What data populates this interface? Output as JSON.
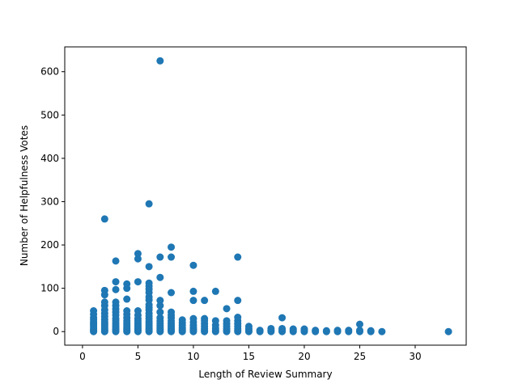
{
  "chart_data": {
    "type": "scatter",
    "title": "",
    "xlabel": "Length of Review Summary",
    "ylabel": "Number of Helpfulness Votes",
    "xlim": [
      -1.6,
      34.6
    ],
    "ylim": [
      -31.3,
      657.3
    ],
    "xticks": [
      0,
      5,
      10,
      15,
      20,
      25,
      30
    ],
    "yticks": [
      0,
      100,
      200,
      300,
      400,
      500,
      600
    ],
    "grid": false,
    "marker_color": "#1f77b4",
    "series": [
      {
        "points": [
          [
            1,
            0
          ],
          [
            1,
            3
          ],
          [
            1,
            6
          ],
          [
            1,
            10
          ],
          [
            1,
            14
          ],
          [
            1,
            18
          ],
          [
            1,
            22
          ],
          [
            1,
            27
          ],
          [
            1,
            32
          ],
          [
            1,
            40
          ],
          [
            1,
            48
          ],
          [
            2,
            0
          ],
          [
            2,
            3
          ],
          [
            2,
            6
          ],
          [
            2,
            10
          ],
          [
            2,
            14
          ],
          [
            2,
            18
          ],
          [
            2,
            23
          ],
          [
            2,
            28
          ],
          [
            2,
            35
          ],
          [
            2,
            42
          ],
          [
            2,
            50
          ],
          [
            2,
            60
          ],
          [
            2,
            68
          ],
          [
            2,
            85
          ],
          [
            2,
            95
          ],
          [
            2,
            260
          ],
          [
            3,
            0
          ],
          [
            3,
            3
          ],
          [
            3,
            6
          ],
          [
            3,
            10
          ],
          [
            3,
            14
          ],
          [
            3,
            19
          ],
          [
            3,
            25
          ],
          [
            3,
            30
          ],
          [
            3,
            38
          ],
          [
            3,
            45
          ],
          [
            3,
            52
          ],
          [
            3,
            60
          ],
          [
            3,
            68
          ],
          [
            3,
            97
          ],
          [
            3,
            115
          ],
          [
            3,
            163
          ],
          [
            4,
            0
          ],
          [
            4,
            3
          ],
          [
            4,
            6
          ],
          [
            4,
            10
          ],
          [
            4,
            14
          ],
          [
            4,
            19
          ],
          [
            4,
            25
          ],
          [
            4,
            32
          ],
          [
            4,
            40
          ],
          [
            4,
            48
          ],
          [
            4,
            75
          ],
          [
            4,
            100
          ],
          [
            4,
            110
          ],
          [
            5,
            0
          ],
          [
            5,
            3
          ],
          [
            5,
            6
          ],
          [
            5,
            10
          ],
          [
            5,
            14
          ],
          [
            5,
            19
          ],
          [
            5,
            25
          ],
          [
            5,
            30
          ],
          [
            5,
            38
          ],
          [
            5,
            48
          ],
          [
            5,
            115
          ],
          [
            5,
            168
          ],
          [
            5,
            180
          ],
          [
            6,
            0
          ],
          [
            6,
            3
          ],
          [
            6,
            6
          ],
          [
            6,
            10
          ],
          [
            6,
            14
          ],
          [
            6,
            19
          ],
          [
            6,
            24
          ],
          [
            6,
            30
          ],
          [
            6,
            36
          ],
          [
            6,
            42
          ],
          [
            6,
            50
          ],
          [
            6,
            56
          ],
          [
            6,
            62
          ],
          [
            6,
            73
          ],
          [
            6,
            80
          ],
          [
            6,
            90
          ],
          [
            6,
            98
          ],
          [
            6,
            105
          ],
          [
            6,
            112
          ],
          [
            6,
            150
          ],
          [
            6,
            295
          ],
          [
            7,
            0
          ],
          [
            7,
            3
          ],
          [
            7,
            6
          ],
          [
            7,
            10
          ],
          [
            7,
            14
          ],
          [
            7,
            19
          ],
          [
            7,
            25
          ],
          [
            7,
            32
          ],
          [
            7,
            45
          ],
          [
            7,
            60
          ],
          [
            7,
            72
          ],
          [
            7,
            125
          ],
          [
            7,
            172
          ],
          [
            7,
            625
          ],
          [
            8,
            0
          ],
          [
            8,
            3
          ],
          [
            8,
            6
          ],
          [
            8,
            10
          ],
          [
            8,
            14
          ],
          [
            8,
            19
          ],
          [
            8,
            25
          ],
          [
            8,
            32
          ],
          [
            8,
            38
          ],
          [
            8,
            45
          ],
          [
            8,
            90
          ],
          [
            8,
            172
          ],
          [
            8,
            195
          ],
          [
            9,
            0
          ],
          [
            9,
            3
          ],
          [
            9,
            6
          ],
          [
            9,
            10
          ],
          [
            9,
            15
          ],
          [
            9,
            20
          ],
          [
            9,
            27
          ],
          [
            10,
            0
          ],
          [
            10,
            3
          ],
          [
            10,
            6
          ],
          [
            10,
            10
          ],
          [
            10,
            15
          ],
          [
            10,
            22
          ],
          [
            10,
            30
          ],
          [
            10,
            72
          ],
          [
            10,
            93
          ],
          [
            10,
            153
          ],
          [
            11,
            0
          ],
          [
            11,
            3
          ],
          [
            11,
            7
          ],
          [
            11,
            12
          ],
          [
            11,
            18
          ],
          [
            11,
            25
          ],
          [
            11,
            30
          ],
          [
            11,
            72
          ],
          [
            12,
            0
          ],
          [
            12,
            3
          ],
          [
            12,
            8
          ],
          [
            12,
            15
          ],
          [
            12,
            25
          ],
          [
            12,
            93
          ],
          [
            13,
            0
          ],
          [
            13,
            3
          ],
          [
            13,
            7
          ],
          [
            13,
            12
          ],
          [
            13,
            18
          ],
          [
            13,
            25
          ],
          [
            13,
            53
          ],
          [
            14,
            0
          ],
          [
            14,
            3
          ],
          [
            14,
            7
          ],
          [
            14,
            12
          ],
          [
            14,
            18
          ],
          [
            14,
            25
          ],
          [
            14,
            33
          ],
          [
            14,
            72
          ],
          [
            14,
            172
          ],
          [
            15,
            0
          ],
          [
            15,
            3
          ],
          [
            15,
            7
          ],
          [
            15,
            12
          ],
          [
            16,
            0
          ],
          [
            16,
            3
          ],
          [
            17,
            0
          ],
          [
            17,
            3
          ],
          [
            17,
            7
          ],
          [
            18,
            0
          ],
          [
            18,
            3
          ],
          [
            18,
            7
          ],
          [
            18,
            32
          ],
          [
            19,
            0
          ],
          [
            19,
            3
          ],
          [
            19,
            6
          ],
          [
            20,
            0
          ],
          [
            20,
            3
          ],
          [
            20,
            6
          ],
          [
            21,
            0
          ],
          [
            21,
            3
          ],
          [
            22,
            0
          ],
          [
            22,
            2
          ],
          [
            23,
            0
          ],
          [
            23,
            3
          ],
          [
            24,
            0
          ],
          [
            24,
            3
          ],
          [
            25,
            0
          ],
          [
            25,
            3
          ],
          [
            25,
            17
          ],
          [
            26,
            0
          ],
          [
            26,
            2
          ],
          [
            27,
            0
          ],
          [
            33,
            0
          ]
        ]
      }
    ]
  }
}
